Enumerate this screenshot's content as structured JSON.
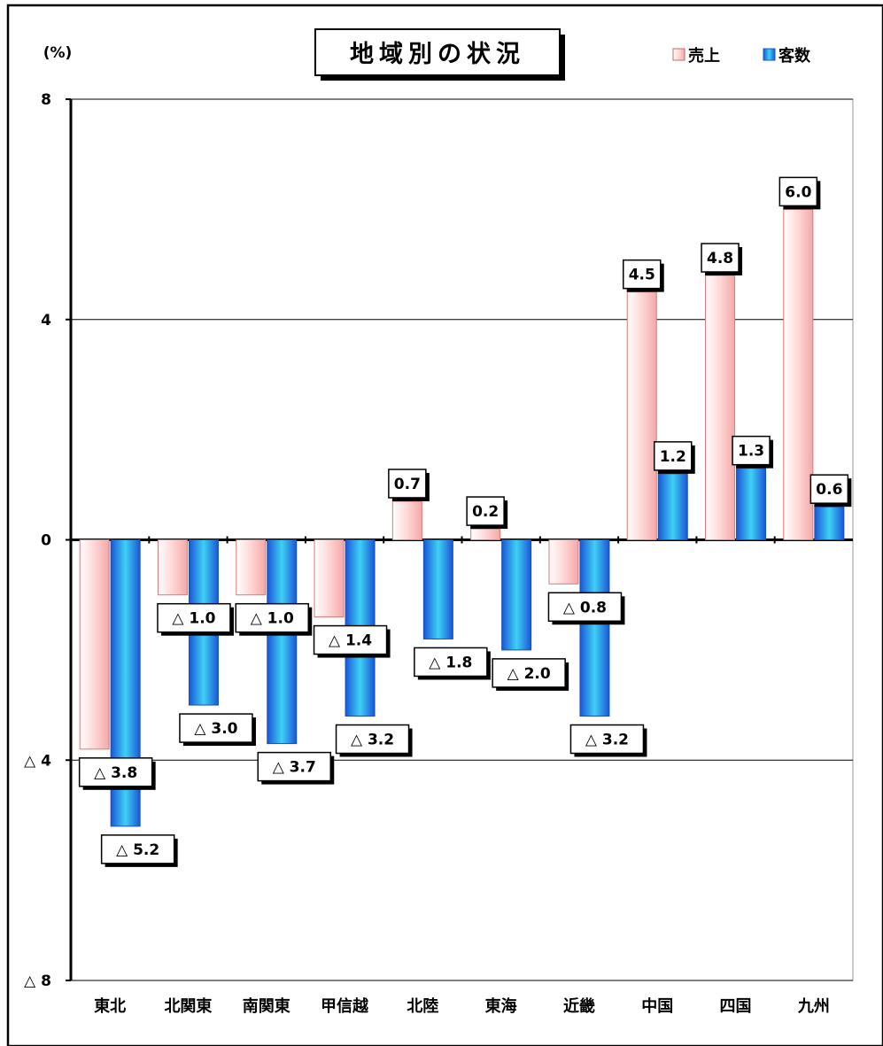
{
  "chart_data": {
    "type": "bar",
    "title": "地域別の状況",
    "ylabel": "(%)",
    "ylim": [
      -8,
      8
    ],
    "yticks": [
      8,
      4,
      0,
      -4,
      -8
    ],
    "ytick_labels": [
      "8",
      "4",
      "0",
      "△ 4",
      "△ 8"
    ],
    "categories": [
      "東北",
      "北関東",
      "南関東",
      "甲信越",
      "北陸",
      "東海",
      "近畿",
      "中国",
      "四国",
      "九州"
    ],
    "series": [
      {
        "name": "売上",
        "color": "#f9c6c6",
        "values": [
          -3.8,
          -1.0,
          -1.0,
          -1.4,
          0.7,
          0.2,
          -0.8,
          4.5,
          4.8,
          6.0
        ],
        "labels": [
          "△ 3.8",
          "△ 1.0",
          "△ 1.0",
          "△ 1.4",
          "0.7",
          "0.2",
          "△ 0.8",
          "4.5",
          "4.8",
          "6.0"
        ]
      },
      {
        "name": "客数",
        "color": "#2f9ee8",
        "values": [
          -5.2,
          -3.0,
          -3.7,
          -3.2,
          -1.8,
          -2.0,
          -3.2,
          1.2,
          1.3,
          0.6
        ],
        "labels": [
          "△ 5.2",
          "△ 3.0",
          "△ 3.7",
          "△ 3.2",
          "△ 1.8",
          "△ 2.0",
          "△ 3.2",
          "1.2",
          "1.3",
          "0.6"
        ]
      }
    ],
    "grid": true,
    "legend_position": "top-right"
  }
}
